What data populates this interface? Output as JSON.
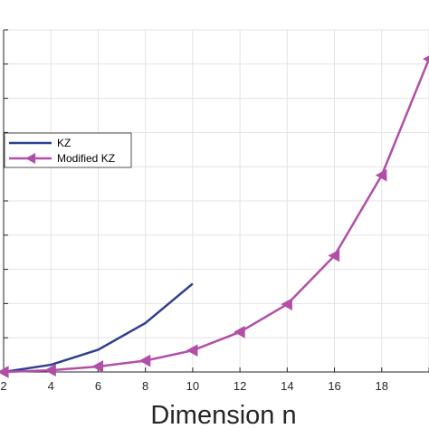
{
  "chart_data": {
    "type": "line",
    "title": "",
    "xlabel": "Dimension n",
    "ylabel": "",
    "x": [
      2,
      4,
      6,
      8,
      10,
      12,
      14,
      16,
      18,
      20
    ],
    "xticks": [
      "2",
      "4",
      "6",
      "8",
      "10",
      "12",
      "14",
      "16",
      "18"
    ],
    "xlim": [
      2,
      20
    ],
    "ylim": [
      0,
      1
    ],
    "grid": true,
    "legend_position": "left",
    "series": [
      {
        "name": "KZ",
        "color": "#2e3f8f",
        "marker": "none",
        "x": [
          2,
          4,
          6,
          8,
          10
        ],
        "values": [
          0.0,
          0.021,
          0.065,
          0.143,
          0.258
        ]
      },
      {
        "name": "Modified KZ",
        "color": "#b14fa8",
        "marker": "left-triangle",
        "x": [
          2,
          4,
          6,
          8,
          10,
          12,
          14,
          16,
          18,
          20
        ],
        "values": [
          0.0,
          0.005,
          0.016,
          0.033,
          0.063,
          0.117,
          0.198,
          0.34,
          0.575,
          0.915
        ]
      }
    ]
  }
}
